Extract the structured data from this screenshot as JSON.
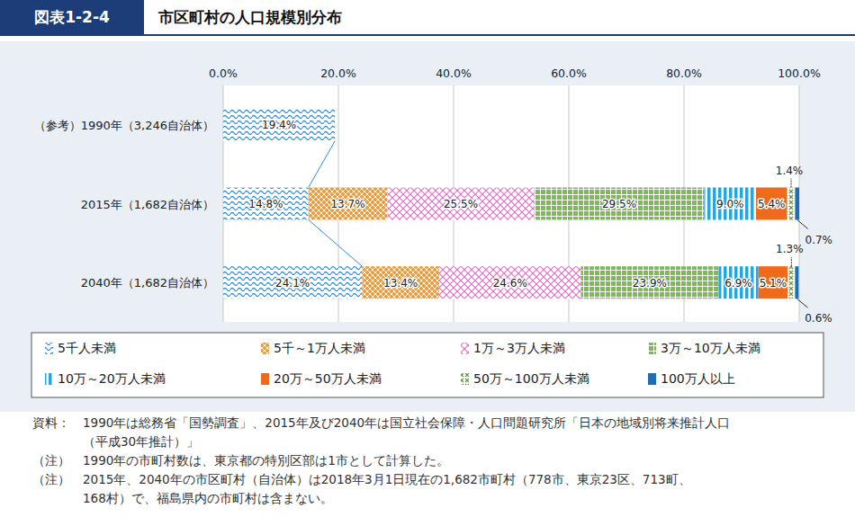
{
  "chart_data": {
    "type": "bar",
    "orientation": "horizontal",
    "stacked": true,
    "data_labels": true,
    "grid": true,
    "figure_label": "図表1-2-4",
    "title": "市区町村の人口規模別分布",
    "categories": [
      "（参考）1990年（3,246自治体）",
      "2015年（1,682自治体）",
      "2040年（1,682自治体）"
    ],
    "xlim": [
      0,
      100
    ],
    "xticks": [
      {
        "value": 0,
        "label": "0.0%"
      },
      {
        "value": 20,
        "label": "20.0%"
      },
      {
        "value": 40,
        "label": "40.0%"
      },
      {
        "value": 60,
        "label": "60.0%"
      },
      {
        "value": 80,
        "label": "80.0%"
      },
      {
        "value": 100,
        "label": "100.0%"
      }
    ],
    "series": [
      {
        "name": "5千人未満",
        "color": "#2b8fd6",
        "values": [
          19.4,
          14.8,
          24.1
        ],
        "value_labels": [
          "19.4%",
          "14.8%",
          "24.1%"
        ]
      },
      {
        "name": "5千～1万人未満",
        "color": "#f39a3a",
        "values": [
          null,
          13.7,
          13.4
        ],
        "value_labels": [
          null,
          "13.7%",
          "13.4%"
        ]
      },
      {
        "name": "1万～3万人未満",
        "color": "#e06cc0",
        "values": [
          null,
          25.5,
          24.6
        ],
        "value_labels": [
          null,
          "25.5%",
          "24.6%"
        ]
      },
      {
        "name": "3万～10万人未満",
        "color": "#78c04a",
        "values": [
          null,
          29.5,
          23.9
        ],
        "value_labels": [
          null,
          "29.5%",
          "23.9%"
        ]
      },
      {
        "name": "10万～20万人未満",
        "color": "#27a6de",
        "values": [
          null,
          9.0,
          6.9
        ],
        "value_labels": [
          null,
          "9.0%",
          "6.9%"
        ]
      },
      {
        "name": "20万～50万人未満",
        "color": "#f06a1c",
        "values": [
          null,
          5.4,
          5.1
        ],
        "value_labels": [
          null,
          "5.4%",
          "5.1%"
        ]
      },
      {
        "name": "50万～100万人未満",
        "color": "#5f8f3c",
        "values": [
          null,
          1.4,
          1.3
        ],
        "value_labels": [
          null,
          "1.4%",
          "1.3%"
        ]
      },
      {
        "name": "100万人以上",
        "color": "#1f6db5",
        "values": [
          null,
          0.7,
          0.6
        ],
        "value_labels": [
          null,
          "0.7%",
          "0.6%"
        ]
      }
    ],
    "notes": [
      {
        "label": "資料：",
        "lines": [
          "1990年は総務省「国勢調査」、2015年及び2040年は国立社会保障・人口問題研究所「日本の地域別将来推計人口",
          "（平成30年推計）」"
        ]
      },
      {
        "label": "（注）",
        "lines": [
          "1990年の市町村数は、東京都の特別区部は1市として計算した。"
        ]
      },
      {
        "label": "（注）",
        "lines": [
          "2015年、2040年の市区町村（自治体）は2018年3月1日現在の1,682市町村（778市、東京23区、713町、",
          "168村）で、福島県内の市町村は含まない。"
        ]
      }
    ]
  }
}
